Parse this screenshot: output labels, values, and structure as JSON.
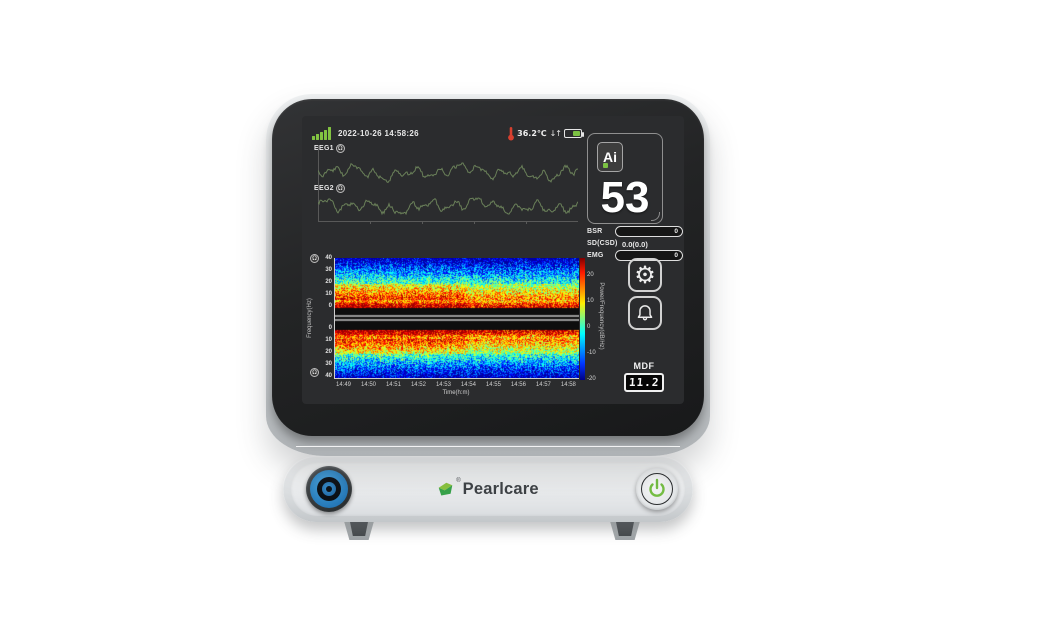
{
  "device": {
    "screen": {
      "status_bar": {
        "datetime": "2022-10-26  14:58:26",
        "temperature": "36.2℃",
        "arrows": "↓↑"
      },
      "eeg": {
        "channels": [
          {
            "label": "EEG1",
            "impedance_glyph": "Ω"
          },
          {
            "label": "EEG2",
            "impedance_glyph": "Ω"
          }
        ]
      },
      "index_panel": {
        "ai_label": "Ai",
        "value": "53"
      },
      "metrics": {
        "bsr": {
          "label": "BSR",
          "value": "0"
        },
        "sd_csd": {
          "label": "SD(CSD)",
          "value": "0.0(0.0)"
        },
        "emg": {
          "label": "EMG",
          "value": "0"
        }
      },
      "controls": {
        "settings_glyph": "⚙"
      },
      "mdf": {
        "label": "MDF",
        "value": "11.2"
      }
    },
    "front_panel": {
      "brand": "Pearlcare",
      "reg_mark": "®"
    }
  },
  "chart_data": {
    "type": "heatmap",
    "description": "Dual-channel EEG density spectral array, mirrored panels",
    "xlabel": "Time(h:m)",
    "ylabel": "Frequency(Hz)",
    "x_ticks": [
      "14:49",
      "14:50",
      "14:51",
      "14:52",
      "14:53",
      "14:54",
      "14:55",
      "14:56",
      "14:57",
      "14:58"
    ],
    "y_ticks_top": [
      "40",
      "30",
      "20",
      "10",
      "0"
    ],
    "y_ticks_bottom": [
      "0",
      "10",
      "20",
      "30",
      "40"
    ],
    "colorbar": {
      "label": "Power/Frequency(dB/Hz)",
      "ticks": [
        "20",
        "10",
        "0",
        "-10",
        "-20"
      ]
    },
    "accent_colors": {
      "hot": "#ff0000",
      "band": "#ffee00",
      "cold": "#000084",
      "eeg_trace": "#6a8059"
    }
  }
}
